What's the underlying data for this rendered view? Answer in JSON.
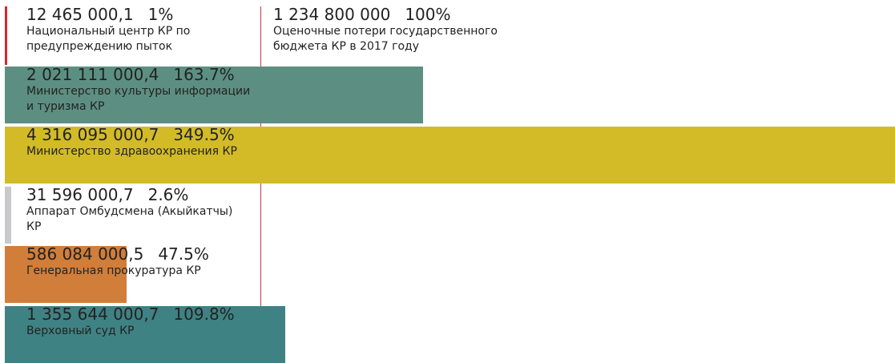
{
  "chart_data": {
    "type": "bar",
    "orientation": "horizontal",
    "reference": {
      "value": "1 234 800 000",
      "percent": "100%",
      "label": "Оценочные потери государственного бюджета КР в 2017 году",
      "color": "#d23a3a"
    },
    "bars": [
      {
        "value": "12 465 000,1",
        "percent": "1%",
        "pct_num": 1.0,
        "label": "Национальный центр КР по предупреждению пыток",
        "color": "#d9262b"
      },
      {
        "value": "2 021 111 000,4",
        "percent": "163.7%",
        "pct_num": 163.7,
        "label": "Министерство культуры информации и туризма КР",
        "color": "#5c8f82"
      },
      {
        "value": "4 316 095 000,7",
        "percent": "349.5%",
        "pct_num": 349.5,
        "label": "Министерство здравоохранения КР",
        "color": "#d3bb28"
      },
      {
        "value": "31 596 000,7",
        "percent": "2.6%",
        "pct_num": 2.6,
        "label": "Аппарат Омбудсмена (Акыйкатчы) КР",
        "color": "#c9c9cc"
      },
      {
        "value": "586 084 000,5",
        "percent": "47.5%",
        "pct_num": 47.5,
        "label": "Генеральная прокуратура КР",
        "color": "#d07e3a"
      },
      {
        "value": "1 355 644 000,7",
        "percent": "109.8%",
        "pct_num": 109.8,
        "label": "Верховный суд КР",
        "color": "#3f8283"
      }
    ]
  }
}
